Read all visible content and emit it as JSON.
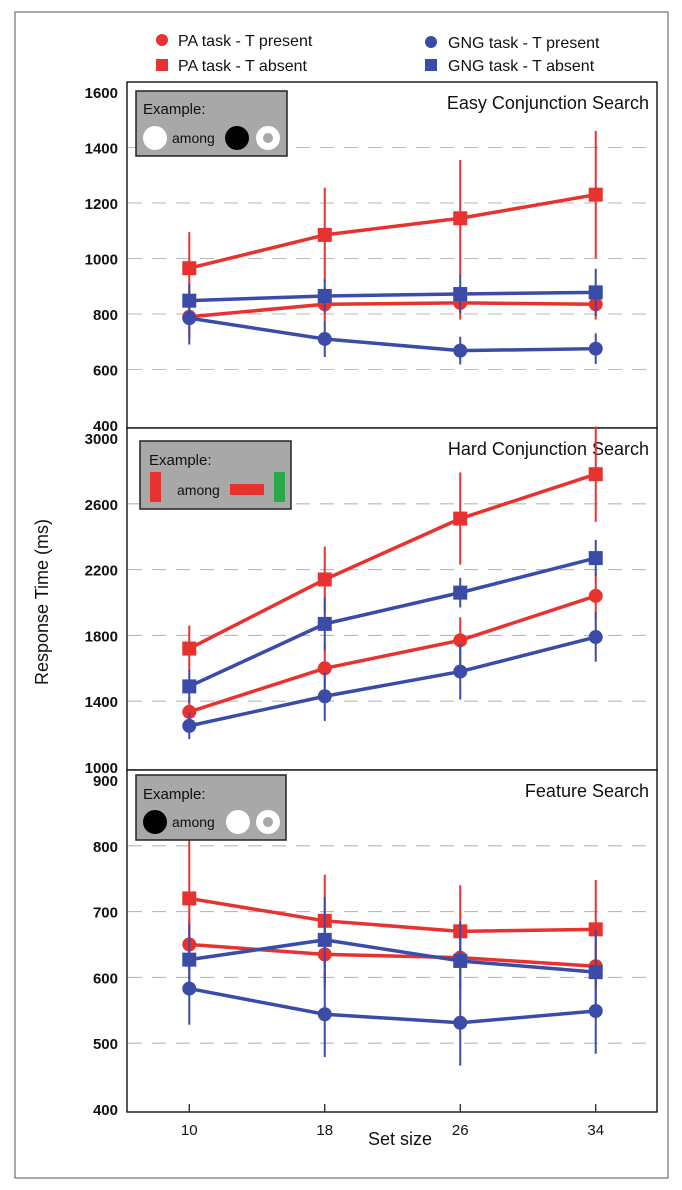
{
  "legend": [
    {
      "label": "PA task - T present",
      "color": "#e8322f",
      "marker": "circle"
    },
    {
      "label": "PA task - T absent",
      "color": "#e8322f",
      "marker": "square"
    },
    {
      "label": "GNG task - T present",
      "color": "#3b4ba8",
      "marker": "circle"
    },
    {
      "label": "GNG task - T absent",
      "color": "#3b4ba8",
      "marker": "square"
    }
  ],
  "colors": {
    "pa": "#e8322f",
    "gng": "#3b4ba8",
    "example_bg": "#a8a8a8",
    "green": "#2aa94a",
    "grid": "#b9b9b9"
  },
  "ylabel": "Response Time (ms)",
  "xlabel": "Set size",
  "example_label": "Example:",
  "among_label": "among",
  "chart_data": [
    {
      "type": "line",
      "title": "Easy Conjunction Search",
      "categories": [
        "10",
        "18",
        "26",
        "34"
      ],
      "x": [
        10,
        18,
        26,
        34
      ],
      "ylim": [
        400,
        1600
      ],
      "yticks": [
        400,
        600,
        800,
        1000,
        1200,
        1400,
        1600
      ],
      "grid": true,
      "example": [
        "white-circle",
        "among",
        "black-circle",
        "ring-circle"
      ],
      "series": [
        {
          "name": "PA task - T present",
          "marker": "circle",
          "color": "#e8322f",
          "values": [
            790,
            835,
            840,
            835
          ],
          "errors": [
            80,
            60,
            60,
            55
          ]
        },
        {
          "name": "PA task - T absent",
          "marker": "square",
          "color": "#e8322f",
          "values": [
            965,
            1085,
            1145,
            1230
          ],
          "errors": [
            130,
            170,
            210,
            230
          ]
        },
        {
          "name": "GNG task - T present",
          "marker": "circle",
          "color": "#3b4ba8",
          "values": [
            785,
            710,
            668,
            675
          ],
          "errors": [
            95,
            65,
            50,
            55
          ]
        },
        {
          "name": "GNG task - T absent",
          "marker": "square",
          "color": "#3b4ba8",
          "values": [
            848,
            865,
            872,
            878
          ],
          "errors": [
            60,
            60,
            70,
            85
          ]
        }
      ]
    },
    {
      "type": "line",
      "title": "Hard Conjunction Search",
      "categories": [
        "10",
        "18",
        "26",
        "34"
      ],
      "x": [
        10,
        18,
        26,
        34
      ],
      "ylim": [
        1000,
        3000
      ],
      "yticks": [
        1000,
        1400,
        1800,
        2200,
        2600,
        3000
      ],
      "grid": true,
      "example": [
        "red-vertical-bar",
        "among",
        "red-horizontal-bar",
        "green-vertical-bar"
      ],
      "series": [
        {
          "name": "PA task - T present",
          "marker": "circle",
          "color": "#e8322f",
          "values": [
            1335,
            1600,
            1770,
            2040
          ],
          "errors": [
            90,
            150,
            140,
            140
          ]
        },
        {
          "name": "PA task - T absent",
          "marker": "square",
          "color": "#e8322f",
          "values": [
            1720,
            2140,
            2510,
            2780
          ],
          "errors": [
            140,
            200,
            280,
            290
          ]
        },
        {
          "name": "GNG task - T present",
          "marker": "circle",
          "color": "#3b4ba8",
          "values": [
            1250,
            1430,
            1580,
            1790
          ],
          "errors": [
            80,
            150,
            170,
            150
          ]
        },
        {
          "name": "GNG task - T absent",
          "marker": "square",
          "color": "#3b4ba8",
          "values": [
            1490,
            1870,
            2060,
            2270
          ],
          "errors": [
            100,
            160,
            90,
            110
          ]
        }
      ]
    },
    {
      "type": "line",
      "title": "Feature Search",
      "categories": [
        "10",
        "18",
        "26",
        "34"
      ],
      "x": [
        10,
        18,
        26,
        34
      ],
      "ylim": [
        400,
        900
      ],
      "yticks": [
        400,
        500,
        600,
        700,
        800,
        900
      ],
      "grid": true,
      "example": [
        "black-circle",
        "among",
        "white-circle",
        "ring-circle"
      ],
      "series": [
        {
          "name": "PA task - T present",
          "marker": "circle",
          "color": "#e8322f",
          "values": [
            650,
            635,
            630,
            617
          ],
          "errors": [
            40,
            50,
            45,
            35
          ]
        },
        {
          "name": "PA task - T absent",
          "marker": "square",
          "color": "#e8322f",
          "values": [
            720,
            686,
            670,
            673
          ],
          "errors": [
            95,
            70,
            70,
            75
          ]
        },
        {
          "name": "GNG task - T present",
          "marker": "circle",
          "color": "#3b4ba8",
          "values": [
            583,
            544,
            531,
            549
          ],
          "errors": [
            55,
            65,
            65,
            65
          ]
        },
        {
          "name": "GNG task - T absent",
          "marker": "square",
          "color": "#3b4ba8",
          "values": [
            627,
            657,
            625,
            608
          ],
          "errors": [
            55,
            65,
            60,
            65
          ]
        }
      ]
    }
  ]
}
